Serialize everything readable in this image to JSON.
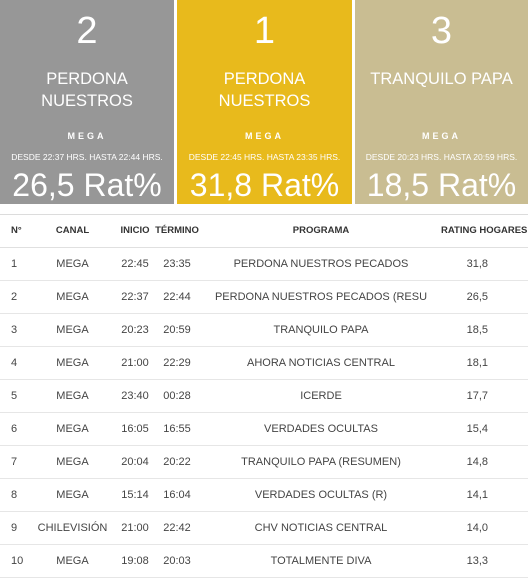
{
  "podium": [
    {
      "rank": "2",
      "program": "PERDONA NUESTROS PECADOS (RESU",
      "channel": "MEGA",
      "time": "DESDE 22:37 HRS. HASTA 22:44 HRS.",
      "rating": "26,5 Rat%",
      "color": "#979797"
    },
    {
      "rank": "1",
      "program": "PERDONA NUESTROS PECADOS",
      "channel": "MEGA",
      "time": "DESDE 22:45 HRS. HASTA 23:35 HRS.",
      "rating": "31,8 Rat%",
      "color": "#e8ba1c"
    },
    {
      "rank": "3",
      "program": "TRANQUILO PAPA",
      "channel": "MEGA",
      "time": "DESDE 20:23 HRS. HASTA 20:59 HRS.",
      "rating": "18,5 Rat%",
      "color": "#c9bd92"
    }
  ],
  "table": {
    "headers": {
      "n": "N°",
      "canal": "CANAL",
      "inicio": "INICIO",
      "termino": "TÉRMINO",
      "programa": "PROGRAMA",
      "rating": "RATING HOGARES"
    },
    "rows": [
      {
        "n": "1",
        "canal": "MEGA",
        "inicio": "22:45",
        "termino": "23:35",
        "programa": "PERDONA NUESTROS PECADOS",
        "rating": "31,8"
      },
      {
        "n": "2",
        "canal": "MEGA",
        "inicio": "22:37",
        "termino": "22:44",
        "programa": "PERDONA NUESTROS PECADOS (RESU",
        "rating": "26,5"
      },
      {
        "n": "3",
        "canal": "MEGA",
        "inicio": "20:23",
        "termino": "20:59",
        "programa": "TRANQUILO PAPA",
        "rating": "18,5"
      },
      {
        "n": "4",
        "canal": "MEGA",
        "inicio": "21:00",
        "termino": "22:29",
        "programa": "AHORA NOTICIAS CENTRAL",
        "rating": "18,1"
      },
      {
        "n": "5",
        "canal": "MEGA",
        "inicio": "23:40",
        "termino": "00:28",
        "programa": "ICERDE",
        "rating": "17,7"
      },
      {
        "n": "6",
        "canal": "MEGA",
        "inicio": "16:05",
        "termino": "16:55",
        "programa": "VERDADES OCULTAS",
        "rating": "15,4"
      },
      {
        "n": "7",
        "canal": "MEGA",
        "inicio": "20:04",
        "termino": "20:22",
        "programa": "TRANQUILO PAPA (RESUMEN)",
        "rating": "14,8"
      },
      {
        "n": "8",
        "canal": "MEGA",
        "inicio": "15:14",
        "termino": "16:04",
        "programa": "VERDADES OCULTAS (R)",
        "rating": "14,1"
      },
      {
        "n": "9",
        "canal": "CHILEVISIÓN",
        "inicio": "21:00",
        "termino": "22:42",
        "programa": "CHV NOTICIAS CENTRAL",
        "rating": "14,0"
      },
      {
        "n": "10",
        "canal": "MEGA",
        "inicio": "19:08",
        "termino": "20:03",
        "programa": "TOTALMENTE DIVA",
        "rating": "13,3"
      }
    ]
  }
}
